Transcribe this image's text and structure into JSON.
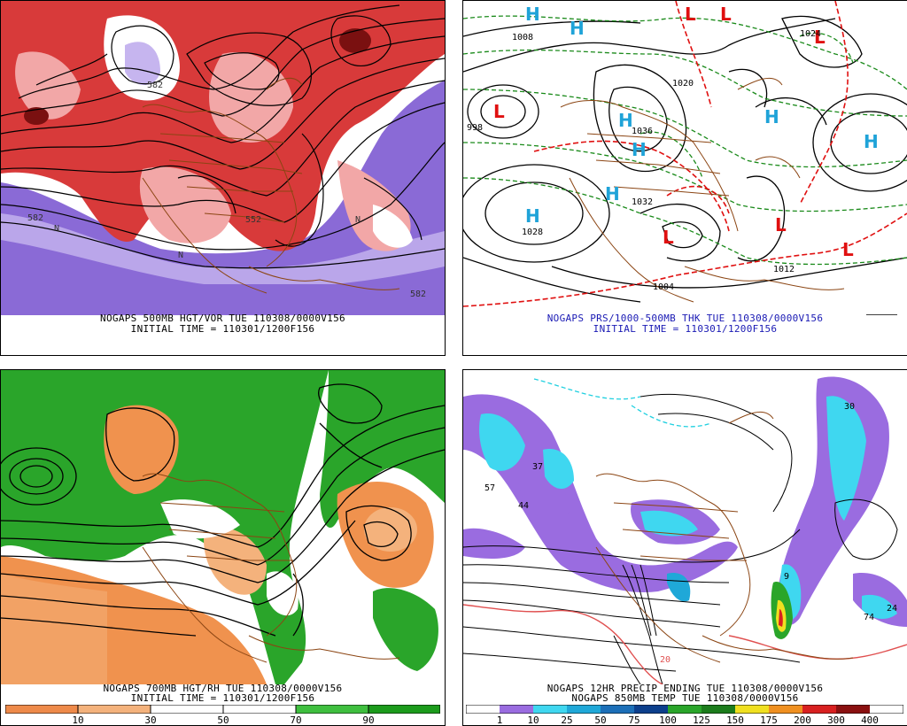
{
  "panels": {
    "tl": {
      "caption1": "NOGAPS 500MB HGT/VOR TUE 110308/0000V156",
      "caption2": "INITIAL TIME = 110301/1200F156",
      "labels": [
        "582",
        "582",
        "552",
        "582",
        "N",
        "N",
        "N"
      ],
      "colors": {
        "pos": "#d83a3a",
        "pos_light": "#f2a7a7",
        "neg": "#8a6ad6",
        "neg_light": "#c6b5ef",
        "contour": "#000000",
        "borders": "#8b4513"
      }
    },
    "tr": {
      "caption1": "NOGAPS PRS/1000-500MB THK TUE 110308/0000V156",
      "caption2": "INITIAL TIME = 110301/1200F156",
      "high_symbol": "H",
      "low_symbol": "L",
      "pressure_labels": [
        "998",
        "1020",
        "1036",
        "1028",
        "1004",
        "1012",
        "1024",
        "1032",
        "1008"
      ],
      "colors": {
        "high": "#1fa3d8",
        "low": "#e01010",
        "thickness_cold": "#1a8a1a",
        "thickness_warm": "#e01010",
        "isobar": "#000000"
      }
    },
    "bl": {
      "caption1": "NOGAPS 700MB HGT/RH TUE 110308/0000V156",
      "caption2": "INITIAL TIME = 110301/1200F156",
      "colorbar_ticks": [
        "10",
        "30",
        "50",
        "70",
        "90"
      ],
      "colorbar_colors": [
        "#ee8a4a",
        "#f4b27c",
        "#ffffff",
        "#ffffff",
        "#3fbf3f",
        "#1c9b1c"
      ],
      "colors": {
        "moist": "#2aa52a",
        "dry": "#f0924e"
      }
    },
    "br": {
      "caption1": "NOGAPS 12HR PRECIP ENDING TUE 110308/0000V156",
      "caption2": "NOGAPS 850MB TEMP TUE 110308/0000V156",
      "colorbar_ticks": [
        "1",
        "10",
        "25",
        "50",
        "75",
        "100",
        "125",
        "150",
        "175",
        "200",
        "300",
        "400"
      ],
      "colorbar_colors": [
        "#ffffff",
        "#9a6ce0",
        "#3fd7f0",
        "#1fa8d8",
        "#1c6fb8",
        "#0c3f8c",
        "#2aa52a",
        "#1c7c1c",
        "#f0e020",
        "#f09020",
        "#d82020",
        "#8a1010"
      ],
      "labels": [
        "57",
        "44",
        "37",
        "30",
        "74",
        "24",
        "20",
        "9"
      ],
      "colors": {
        "temp_warm": "#e05050",
        "temp_zero": "#20d0e0",
        "contour": "#000000"
      }
    }
  }
}
